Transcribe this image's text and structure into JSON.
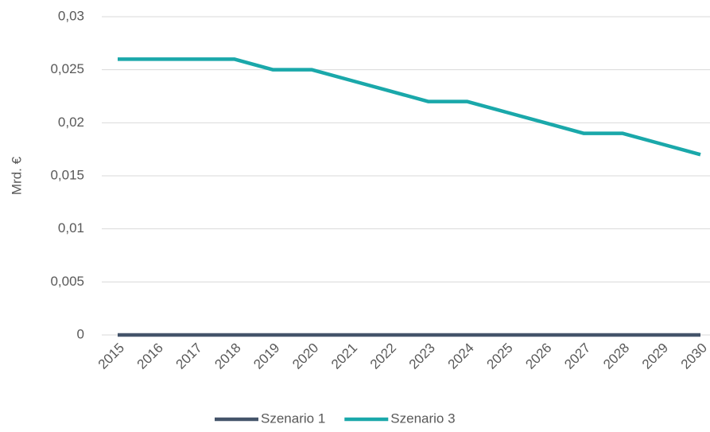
{
  "chart_data": {
    "type": "line",
    "ylabel": "Mrd. €",
    "categories": [
      "2015",
      "2016",
      "2017",
      "2018",
      "2019",
      "2020",
      "2021",
      "2022",
      "2023",
      "2024",
      "2025",
      "2026",
      "2027",
      "2028",
      "2029",
      "2030"
    ],
    "series": [
      {
        "name": "Szenario 1",
        "color": "#44546a",
        "values": [
          0,
          0,
          0,
          0,
          0,
          0,
          0,
          0,
          0,
          0,
          0,
          0,
          0,
          0,
          0,
          0
        ]
      },
      {
        "name": "Szenario 3",
        "color": "#1aa8aa",
        "values": [
          0.026,
          0.026,
          0.026,
          0.026,
          0.025,
          0.025,
          0.024,
          0.023,
          0.022,
          0.022,
          0.021,
          0.02,
          0.019,
          0.019,
          0.018,
          0.017
        ]
      }
    ],
    "ylim": [
      0,
      0.03
    ],
    "yticks": [
      0,
      {
        "value": 0.005,
        "label": "0,005"
      },
      {
        "value": 0.01,
        "label": "0,01"
      },
      {
        "value": 0.015,
        "label": "0,015"
      },
      {
        "value": 0.02,
        "label": "0,02"
      },
      {
        "value": 0.025,
        "label": "0,025"
      },
      {
        "value": 0.03,
        "label": "0,03"
      }
    ],
    "grid": true,
    "legend": "bottom"
  }
}
